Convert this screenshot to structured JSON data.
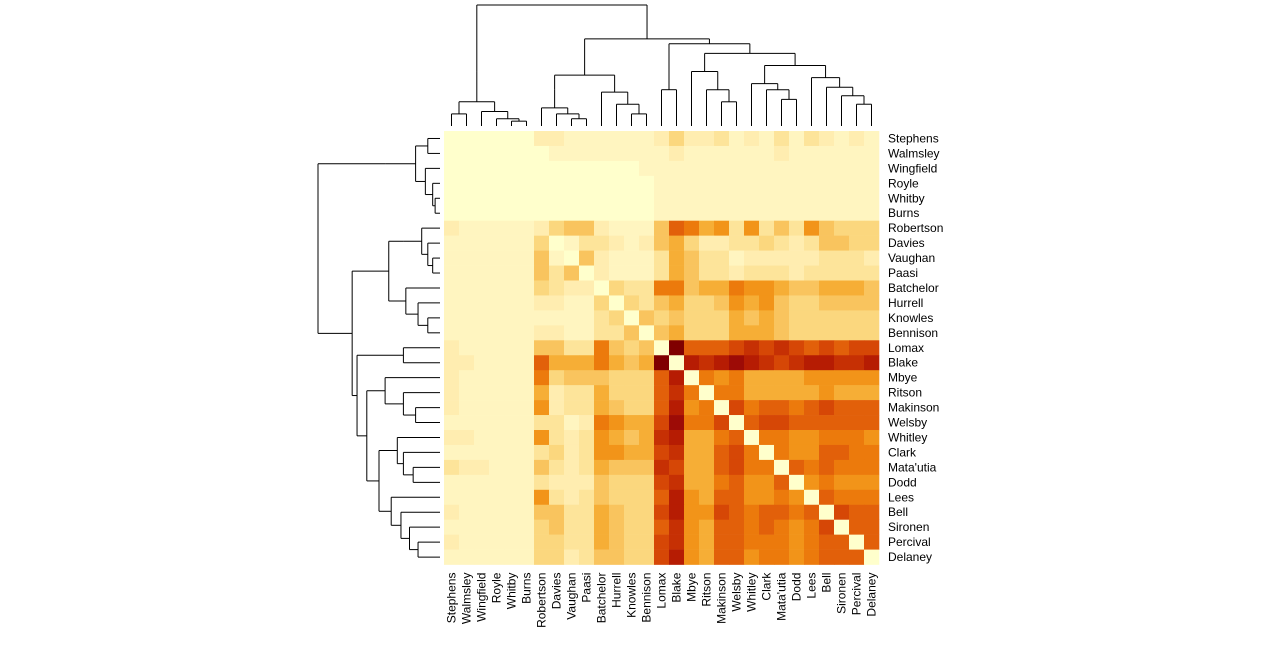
{
  "chart_data": {
    "type": "heatmap",
    "labels": [
      "Stephens",
      "Walmsley",
      "Wingfield",
      "Royle",
      "Whitby",
      "Burns",
      "Robertson",
      "Davies",
      "Vaughan",
      "Paasi",
      "Batchelor",
      "Hurrell",
      "Knowles",
      "Bennison",
      "Lomax",
      "Blake",
      "Mbye",
      "Ritson",
      "Makinson",
      "Welsby",
      "Whitley",
      "Clark",
      "Mata'utia",
      "Dodd",
      "Lees",
      "Bell",
      "Sironen",
      "Percival",
      "Delaney"
    ],
    "palette": [
      "#FFFFCC",
      "#FFF5C0",
      "#FFEDB0",
      "#FDE49A",
      "#FBD77E",
      "#F9C45E",
      "#F6AE36",
      "#F29419",
      "#EC7A0C",
      "#E2600A",
      "#D64706",
      "#C63004",
      "#B61C03",
      "#9D0B06",
      "#800000"
    ],
    "matrix": [
      [
        0,
        0,
        0,
        0,
        0,
        0,
        2,
        2,
        1,
        1,
        1,
        1,
        1,
        1,
        2,
        4,
        2,
        2,
        3,
        1,
        2,
        1,
        3,
        1,
        3,
        2,
        1,
        2,
        1
      ],
      [
        0,
        0,
        0,
        0,
        0,
        0,
        0,
        1,
        1,
        1,
        1,
        1,
        1,
        1,
        1,
        2,
        1,
        1,
        1,
        1,
        1,
        1,
        2,
        1,
        1,
        1,
        1,
        1,
        1
      ],
      [
        0,
        0,
        0,
        0,
        0,
        0,
        0,
        0,
        0,
        0,
        0,
        0,
        0,
        1,
        1,
        1,
        1,
        1,
        1,
        1,
        1,
        1,
        1,
        1,
        1,
        1,
        1,
        1,
        1
      ],
      [
        0,
        0,
        0,
        0,
        0,
        0,
        0,
        0,
        0,
        0,
        0,
        0,
        0,
        0,
        1,
        1,
        1,
        1,
        1,
        1,
        1,
        1,
        1,
        1,
        1,
        1,
        1,
        1,
        1
      ],
      [
        0,
        0,
        0,
        0,
        0,
        0,
        0,
        0,
        0,
        0,
        0,
        0,
        0,
        0,
        1,
        1,
        1,
        1,
        1,
        1,
        1,
        1,
        1,
        1,
        1,
        1,
        1,
        1,
        1
      ],
      [
        0,
        0,
        0,
        0,
        0,
        0,
        0,
        0,
        0,
        0,
        0,
        0,
        0,
        0,
        1,
        1,
        1,
        1,
        1,
        1,
        1,
        1,
        1,
        1,
        1,
        1,
        1,
        1,
        1
      ],
      [
        2,
        1,
        1,
        1,
        1,
        1,
        2,
        4,
        5,
        5,
        2,
        1,
        1,
        1,
        5,
        9,
        8,
        6,
        7,
        3,
        7,
        3,
        5,
        3,
        7,
        5,
        4,
        4,
        4
      ],
      [
        1,
        1,
        1,
        1,
        1,
        1,
        4,
        0,
        1,
        3,
        3,
        2,
        1,
        2,
        5,
        6,
        4,
        2,
        2,
        3,
        3,
        4,
        3,
        2,
        3,
        5,
        5,
        4,
        4
      ],
      [
        1,
        1,
        1,
        1,
        1,
        1,
        5,
        1,
        0,
        5,
        2,
        1,
        1,
        1,
        3,
        6,
        5,
        3,
        3,
        1,
        2,
        2,
        2,
        2,
        2,
        3,
        3,
        3,
        2
      ],
      [
        1,
        1,
        1,
        1,
        1,
        1,
        5,
        3,
        5,
        0,
        2,
        1,
        1,
        1,
        3,
        6,
        5,
        3,
        3,
        2,
        3,
        3,
        3,
        2,
        3,
        3,
        3,
        3,
        3
      ],
      [
        1,
        1,
        1,
        1,
        1,
        1,
        4,
        3,
        2,
        2,
        0,
        4,
        3,
        3,
        8,
        8,
        5,
        6,
        6,
        8,
        7,
        7,
        6,
        5,
        5,
        6,
        6,
        6,
        5
      ],
      [
        1,
        1,
        1,
        1,
        1,
        1,
        2,
        2,
        1,
        1,
        4,
        0,
        4,
        3,
        5,
        6,
        4,
        4,
        5,
        7,
        6,
        7,
        5,
        4,
        4,
        5,
        5,
        5,
        5
      ],
      [
        1,
        1,
        1,
        1,
        1,
        1,
        1,
        1,
        1,
        1,
        3,
        4,
        0,
        5,
        4,
        5,
        4,
        4,
        4,
        6,
        5,
        6,
        5,
        4,
        4,
        4,
        4,
        4,
        4
      ],
      [
        1,
        1,
        1,
        1,
        1,
        1,
        2,
        2,
        1,
        1,
        3,
        3,
        5,
        0,
        5,
        6,
        4,
        4,
        4,
        6,
        6,
        6,
        5,
        4,
        4,
        4,
        4,
        4,
        4
      ],
      [
        2,
        1,
        1,
        1,
        1,
        1,
        5,
        5,
        3,
        3,
        8,
        5,
        4,
        5,
        0,
        14,
        9,
        9,
        9,
        10,
        11,
        10,
        11,
        10,
        9,
        10,
        9,
        10,
        10
      ],
      [
        2,
        2,
        1,
        1,
        1,
        1,
        9,
        6,
        6,
        6,
        8,
        6,
        5,
        6,
        14,
        0,
        12,
        11,
        12,
        13,
        12,
        11,
        10,
        11,
        12,
        12,
        11,
        11,
        12
      ],
      [
        2,
        1,
        1,
        1,
        1,
        1,
        8,
        4,
        5,
        5,
        5,
        4,
        4,
        4,
        9,
        12,
        0,
        8,
        7,
        8,
        6,
        6,
        6,
        6,
        7,
        7,
        7,
        7,
        7
      ],
      [
        2,
        1,
        1,
        1,
        1,
        1,
        6,
        2,
        3,
        3,
        6,
        4,
        4,
        4,
        9,
        11,
        8,
        0,
        8,
        8,
        6,
        6,
        6,
        6,
        6,
        7,
        6,
        6,
        6
      ],
      [
        2,
        1,
        1,
        1,
        1,
        1,
        7,
        2,
        3,
        3,
        6,
        5,
        4,
        4,
        9,
        12,
        7,
        8,
        0,
        10,
        8,
        9,
        9,
        8,
        9,
        10,
        9,
        9,
        9
      ],
      [
        1,
        1,
        1,
        1,
        1,
        1,
        3,
        3,
        1,
        2,
        8,
        7,
        6,
        6,
        10,
        13,
        8,
        8,
        10,
        0,
        9,
        10,
        10,
        9,
        9,
        9,
        9,
        9,
        9
      ],
      [
        2,
        2,
        1,
        1,
        1,
        1,
        7,
        3,
        2,
        3,
        7,
        6,
        5,
        6,
        11,
        12,
        6,
        6,
        8,
        9,
        0,
        8,
        8,
        7,
        7,
        8,
        8,
        8,
        7
      ],
      [
        1,
        1,
        1,
        1,
        1,
        1,
        3,
        4,
        2,
        3,
        7,
        7,
        6,
        6,
        10,
        11,
        6,
        6,
        9,
        10,
        8,
        0,
        8,
        7,
        7,
        9,
        9,
        8,
        8
      ],
      [
        3,
        2,
        2,
        1,
        1,
        1,
        5,
        3,
        2,
        3,
        6,
        5,
        5,
        5,
        11,
        10,
        6,
        6,
        9,
        10,
        8,
        8,
        0,
        9,
        8,
        9,
        8,
        8,
        8
      ],
      [
        1,
        1,
        1,
        1,
        1,
        1,
        3,
        2,
        2,
        2,
        5,
        4,
        4,
        4,
        10,
        11,
        6,
        6,
        8,
        9,
        7,
        7,
        9,
        0,
        7,
        8,
        7,
        7,
        7
      ],
      [
        1,
        1,
        1,
        1,
        1,
        1,
        7,
        3,
        2,
        3,
        5,
        4,
        4,
        4,
        9,
        12,
        7,
        6,
        9,
        9,
        7,
        7,
        8,
        7,
        0,
        9,
        8,
        8,
        8
      ],
      [
        2,
        1,
        1,
        1,
        1,
        1,
        5,
        5,
        3,
        3,
        6,
        5,
        4,
        4,
        10,
        12,
        7,
        7,
        10,
        9,
        8,
        9,
        9,
        8,
        9,
        0,
        10,
        9,
        9
      ],
      [
        1,
        1,
        1,
        1,
        1,
        1,
        4,
        5,
        3,
        3,
        6,
        5,
        4,
        4,
        9,
        11,
        7,
        6,
        9,
        9,
        8,
        9,
        8,
        7,
        8,
        10,
        0,
        9,
        9
      ],
      [
        2,
        1,
        1,
        1,
        1,
        1,
        4,
        4,
        3,
        3,
        6,
        5,
        4,
        4,
        10,
        11,
        7,
        6,
        9,
        9,
        8,
        8,
        8,
        7,
        8,
        9,
        9,
        0,
        9
      ],
      [
        1,
        1,
        1,
        1,
        1,
        1,
        4,
        4,
        2,
        3,
        5,
        5,
        4,
        4,
        10,
        12,
        7,
        6,
        9,
        9,
        7,
        8,
        8,
        7,
        8,
        9,
        9,
        9,
        0
      ]
    ],
    "dendrogram": {
      "merges": [
        [
          0,
          1
        ],
        [
          2,
          3
        ],
        [
          4,
          5
        ],
        [
          6,
          7
        ],
        [
          8,
          9
        ],
        [
          10,
          11
        ],
        [
          12,
          13
        ],
        [
          16,
          17
        ],
        [
          19,
          20
        ],
        [
          21,
          22
        ],
        [
          23,
          24
        ],
        [
          25,
          26
        ],
        [
          27,
          28
        ],
        [
          14,
          15
        ]
      ],
      "note": "hierarchical clustering trees shown on left and top"
    }
  }
}
